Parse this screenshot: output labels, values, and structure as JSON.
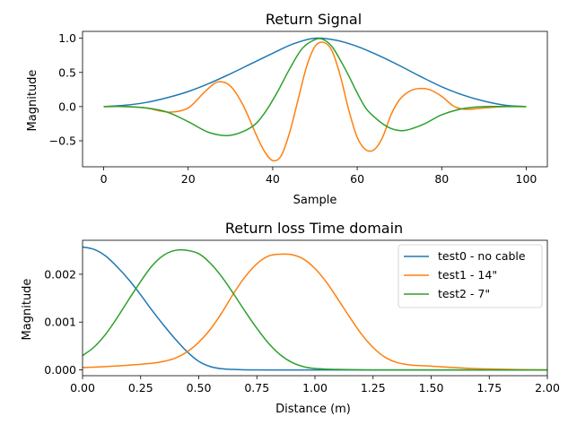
{
  "chart_data": [
    {
      "type": "line",
      "title": "Return Signal",
      "xlabel": "Sample",
      "ylabel": "Magnitude",
      "xlim": [
        -5,
        105
      ],
      "ylim": [
        -0.88,
        1.1
      ],
      "xticks": [
        0,
        20,
        40,
        60,
        80,
        100
      ],
      "yticks": [
        -0.5,
        0.0,
        0.5,
        1.0
      ],
      "xtick_labels": [
        "0",
        "20",
        "40",
        "60",
        "80",
        "100"
      ],
      "ytick_labels": [
        "−0.5",
        "0.0",
        "0.5",
        "1.0"
      ],
      "grid": false,
      "legend": null,
      "series": [
        {
          "color": "#1f77b4",
          "x": [
            0,
            5,
            10,
            15,
            20,
            25,
            30,
            35,
            40,
            45,
            50,
            55,
            60,
            65,
            70,
            75,
            80,
            85,
            90,
            95,
            100
          ],
          "y": [
            0.0,
            0.02,
            0.06,
            0.13,
            0.22,
            0.34,
            0.48,
            0.63,
            0.78,
            0.92,
            1.0,
            0.97,
            0.88,
            0.75,
            0.6,
            0.44,
            0.29,
            0.17,
            0.08,
            0.02,
            0.0
          ]
        },
        {
          "color": "#ff7f0e",
          "x": [
            0,
            5,
            10,
            13,
            16,
            20,
            24,
            27,
            30,
            33,
            36,
            38,
            40,
            42,
            44,
            46,
            48,
            50,
            52,
            54,
            56,
            58,
            60,
            62,
            64,
            66,
            68,
            70,
            72,
            74,
            77,
            80,
            83,
            86,
            90,
            95,
            100
          ],
          "y": [
            0.0,
            0.0,
            -0.02,
            -0.06,
            -0.08,
            -0.02,
            0.22,
            0.36,
            0.3,
            0.02,
            -0.4,
            -0.65,
            -0.79,
            -0.72,
            -0.38,
            0.1,
            0.58,
            0.88,
            0.94,
            0.82,
            0.45,
            -0.05,
            -0.45,
            -0.63,
            -0.63,
            -0.45,
            -0.12,
            0.1,
            0.21,
            0.26,
            0.25,
            0.15,
            0.0,
            -0.04,
            -0.02,
            0.0,
            0.0
          ]
        },
        {
          "color": "#2ca02c",
          "x": [
            0,
            5,
            10,
            15,
            20,
            25,
            30,
            35,
            38,
            41,
            44,
            47,
            50,
            52,
            54,
            56,
            58,
            60,
            62,
            64,
            66,
            68,
            70,
            72,
            76,
            80,
            85,
            90,
            95,
            100
          ],
          "y": [
            0.0,
            0.0,
            -0.02,
            -0.08,
            -0.22,
            -0.38,
            -0.42,
            -0.3,
            -0.1,
            0.2,
            0.55,
            0.85,
            0.98,
            0.98,
            0.88,
            0.68,
            0.45,
            0.2,
            -0.02,
            -0.15,
            -0.25,
            -0.32,
            -0.35,
            -0.34,
            -0.25,
            -0.12,
            -0.03,
            0.0,
            0.0,
            0.0
          ]
        }
      ]
    },
    {
      "type": "line",
      "title": "Return loss Time domain",
      "xlabel": "Distance (m)",
      "ylabel": "Magnitude",
      "xlim": [
        0.0,
        2.0
      ],
      "ylim": [
        -0.00012,
        0.00271
      ],
      "xticks": [
        0.0,
        0.25,
        0.5,
        0.75,
        1.0,
        1.25,
        1.5,
        1.75,
        2.0
      ],
      "yticks": [
        0.0,
        0.001,
        0.002
      ],
      "xtick_labels": [
        "0.00",
        "0.25",
        "0.50",
        "0.75",
        "1.00",
        "1.25",
        "1.50",
        "1.75",
        "2.00"
      ],
      "ytick_labels": [
        "0.000",
        "0.001",
        "0.002"
      ],
      "grid": false,
      "legend": "top-right",
      "series": [
        {
          "name": "test0 - no cable",
          "color": "#1f77b4",
          "x": [
            0.0,
            0.05,
            0.1,
            0.15,
            0.2,
            0.25,
            0.3,
            0.35,
            0.4,
            0.45,
            0.5,
            0.55,
            0.6,
            0.65,
            0.7,
            0.8,
            1.0,
            1.5,
            2.0
          ],
          "y": [
            0.00257,
            0.00252,
            0.00238,
            0.00215,
            0.00188,
            0.00157,
            0.00124,
            0.00093,
            0.00064,
            0.00038,
            0.00018,
            7e-05,
            2.5e-05,
            1e-05,
            3e-06,
            0.0,
            0.0,
            0.0,
            0.0
          ]
        },
        {
          "name": "test1 - 14\"",
          "color": "#ff7f0e",
          "x": [
            0.0,
            0.1,
            0.2,
            0.3,
            0.35,
            0.4,
            0.45,
            0.5,
            0.55,
            0.6,
            0.65,
            0.7,
            0.75,
            0.8,
            0.85,
            0.9,
            0.95,
            1.0,
            1.05,
            1.1,
            1.15,
            1.2,
            1.25,
            1.3,
            1.35,
            1.4,
            1.45,
            1.5,
            1.6,
            1.75,
            2.0
          ],
          "y": [
            5e-05,
            7e-05,
            0.0001,
            0.00014,
            0.00018,
            0.00025,
            0.00038,
            0.00058,
            0.00085,
            0.0012,
            0.0016,
            0.00195,
            0.00222,
            0.00238,
            0.00242,
            0.00241,
            0.00232,
            0.00212,
            0.00183,
            0.00147,
            0.0011,
            0.00075,
            0.00047,
            0.00027,
            0.00016,
            0.00011,
            9e-05,
            8e-05,
            5e-05,
            2e-05,
            0.0
          ]
        },
        {
          "name": "test2 - 7\"",
          "color": "#2ca02c",
          "x": [
            0.0,
            0.05,
            0.1,
            0.15,
            0.2,
            0.25,
            0.3,
            0.35,
            0.4,
            0.45,
            0.5,
            0.55,
            0.6,
            0.65,
            0.7,
            0.75,
            0.8,
            0.85,
            0.9,
            0.95,
            1.0,
            1.1,
            1.25,
            1.5,
            2.0
          ],
          "y": [
            0.0003,
            0.00048,
            0.00075,
            0.0011,
            0.00148,
            0.00185,
            0.00218,
            0.0024,
            0.0025,
            0.0025,
            0.00243,
            0.00223,
            0.00194,
            0.00159,
            0.00122,
            0.00087,
            0.00056,
            0.00032,
            0.00016,
            7e-05,
            3e-05,
            1e-05,
            0.0,
            0.0,
            0.0
          ]
        }
      ]
    }
  ]
}
